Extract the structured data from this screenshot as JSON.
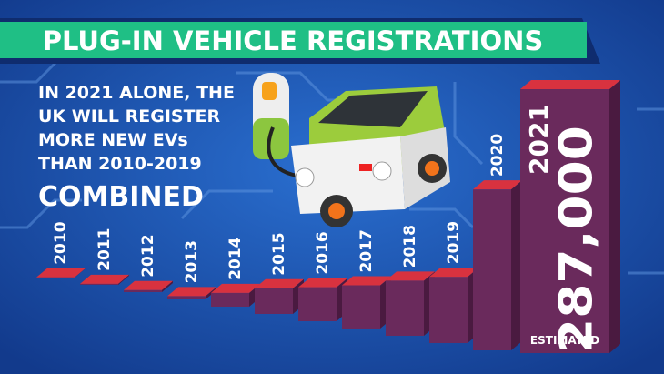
{
  "chart_data": {
    "type": "bar",
    "title": "PLUG-IN VEHICLE REGISTRATIONS",
    "annotation": [
      "IN 2021 ALONE, THE",
      "UK WILL REGISTER",
      "MORE NEW EVs",
      "THAN 2010-2019"
    ],
    "emphasis": "COMBINED",
    "categories": [
      "2010",
      "2011",
      "2012",
      "2013",
      "2014",
      "2015",
      "2016",
      "2017",
      "2018",
      "2019",
      "2020",
      "2021"
    ],
    "values": [
      200,
      1100,
      2200,
      3600,
      15000,
      28000,
      37000,
      47000,
      60000,
      72000,
      175000,
      287000
    ],
    "value_labels": [
      null,
      null,
      null,
      null,
      null,
      null,
      null,
      null,
      null,
      null,
      null,
      "287,000"
    ],
    "estimate_label": "ESTIMATED",
    "front_color": "#6a2a5c",
    "top_color": "#d8323f",
    "side_color": "#4a1a40"
  }
}
